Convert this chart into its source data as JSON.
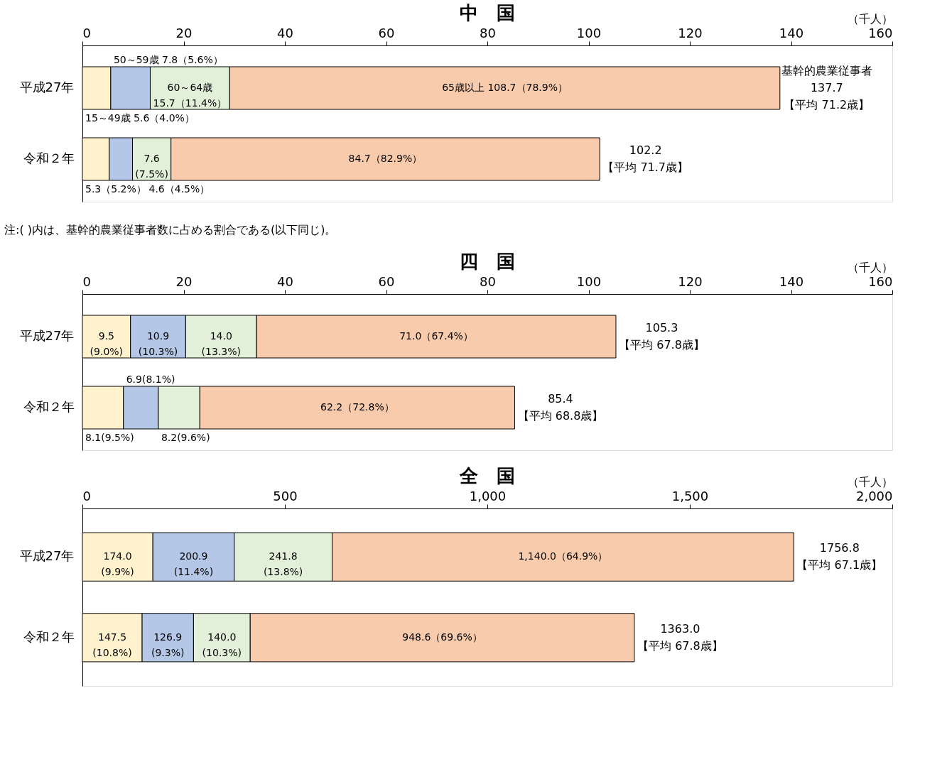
{
  "chart_data": [
    {
      "type": "bar",
      "orientation": "horizontal",
      "stacked": true,
      "title": "中　国",
      "xlabel": "（千人）",
      "grid": false,
      "categories": [
        "平成27年",
        "令和２年"
      ],
      "xlim": [
        0,
        160
      ],
      "xticks": [
        0,
        20,
        40,
        60,
        80,
        100,
        120,
        140,
        160
      ],
      "series": [
        {
          "color": "#fff2cc",
          "values": [
            5.6,
            5.3
          ],
          "value_labels": [
            "15～49歳 5.6（4.0%）",
            "5.3（5.2%）"
          ]
        },
        {
          "color": "#b4c7e7",
          "values": [
            7.8,
            4.6
          ],
          "value_labels": [
            "50～59歳 7.8（5.6%）",
            "4.6（4.5%）"
          ]
        },
        {
          "color": "#e2f0d9",
          "values": [
            15.7,
            7.6
          ],
          "value_labels": [
            "60～64歳\n15.7（11.4%）",
            "7.6\n(7.5%)"
          ]
        },
        {
          "color": "#f8cbad",
          "values": [
            108.7,
            84.7
          ],
          "value_labels": [
            "65歳以上 108.7（78.9%）",
            "84.7（82.9%）"
          ]
        }
      ],
      "totals": [
        "基幹的農業従事者\n137.7\n【平均 71.2歳】",
        "102.2\n【平均 71.7歳】"
      ],
      "annotations": [
        "注:( )内は、基幹的農業従事者数に占める割合である(以下同じ)。"
      ]
    },
    {
      "type": "bar",
      "orientation": "horizontal",
      "stacked": true,
      "title": "四　国",
      "xlabel": "（千人）",
      "grid": false,
      "categories": [
        "平成27年",
        "令和２年"
      ],
      "xlim": [
        0,
        160
      ],
      "xticks": [
        0,
        20,
        40,
        60,
        80,
        100,
        120,
        140,
        160
      ],
      "series": [
        {
          "color": "#fff2cc",
          "values": [
            9.5,
            8.1
          ],
          "value_labels": [
            "9.5\n(9.0%)",
            "8.1(9.5%)"
          ]
        },
        {
          "color": "#b4c7e7",
          "values": [
            10.9,
            6.9
          ],
          "value_labels": [
            "10.9\n(10.3%)",
            "6.9(8.1%)"
          ]
        },
        {
          "color": "#e2f0d9",
          "values": [
            14.0,
            8.2
          ],
          "value_labels": [
            "14.0\n(13.3%)",
            "8.2(9.6%)"
          ]
        },
        {
          "color": "#f8cbad",
          "values": [
            71.0,
            62.2
          ],
          "value_labels": [
            "71.0（67.4%）",
            "62.2（72.8%）"
          ]
        }
      ],
      "totals": [
        "105.3\n【平均 67.8歳】",
        "85.4\n【平均 68.8歳】"
      ]
    },
    {
      "type": "bar",
      "orientation": "horizontal",
      "stacked": true,
      "title": "全　国",
      "xlabel": "（千人）",
      "grid": false,
      "categories": [
        "平成27年",
        "令和２年"
      ],
      "xlim": [
        0,
        2000
      ],
      "xticks": [
        0,
        500,
        {
          "value": 1000,
          "label": "1,000"
        },
        {
          "value": 1500,
          "label": "1,500"
        },
        {
          "value": 2000,
          "label": "2,000"
        }
      ],
      "series": [
        {
          "color": "#fff2cc",
          "values": [
            174.0,
            147.5
          ],
          "value_labels": [
            "174.0\n(9.9%)",
            "147.5\n(10.8%)"
          ]
        },
        {
          "color": "#b4c7e7",
          "values": [
            200.9,
            126.9
          ],
          "value_labels": [
            "200.9\n(11.4%)",
            "126.9\n(9.3%)"
          ]
        },
        {
          "color": "#e2f0d9",
          "values": [
            241.8,
            140.0
          ],
          "value_labels": [
            "241.8\n(13.8%)",
            "140.0\n(10.3%)"
          ]
        },
        {
          "color": "#f8cbad",
          "values": [
            1140.0,
            948.6
          ],
          "value_labels": [
            "1,140.0（64.9%）",
            "948.6（69.6%）"
          ]
        }
      ],
      "totals": [
        "1756.8\n【平均 67.1歳】",
        "1363.0\n【平均 67.8歳】"
      ]
    }
  ]
}
